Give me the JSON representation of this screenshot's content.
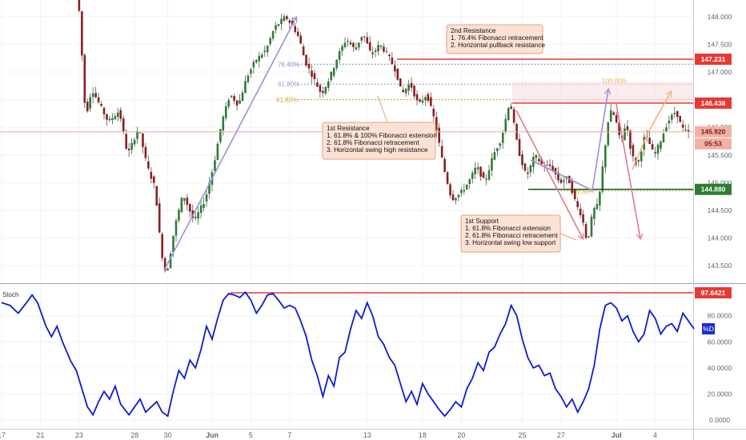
{
  "chart_data": [
    {
      "type": "candlestick",
      "ylim": [
        143.2,
        148.3
      ],
      "y_ticks": [
        "148.000",
        "147.500",
        "147.000",
        "146.500",
        "146.000",
        "145.500",
        "145.000",
        "144.500",
        "144.000",
        "143.500"
      ],
      "x_ticks": [
        "17",
        "21",
        "23",
        "28",
        "30",
        "Jun",
        "5",
        "7",
        "13",
        "18",
        "20",
        "25",
        "27",
        "Jul",
        "4"
      ],
      "x_tick_index": [
        0,
        14,
        28,
        48,
        60,
        76,
        90,
        104,
        132,
        152,
        166,
        188,
        202,
        222,
        236
      ],
      "n_candles": 250,
      "price_path": [
        [
          28,
          148.3
        ],
        [
          29,
          147.9
        ],
        [
          30,
          146.7
        ],
        [
          31,
          146.2
        ],
        [
          33,
          146.7
        ],
        [
          36,
          146.4
        ],
        [
          39,
          146.1
        ],
        [
          43,
          146.3
        ],
        [
          46,
          145.5
        ],
        [
          50,
          146.0
        ],
        [
          53,
          145.3
        ],
        [
          56,
          144.9
        ],
        [
          58,
          143.8
        ],
        [
          60,
          143.3
        ],
        [
          63,
          144.2
        ],
        [
          66,
          144.8
        ],
        [
          70,
          144.3
        ],
        [
          74,
          144.7
        ],
        [
          77,
          145.3
        ],
        [
          80,
          146.1
        ],
        [
          83,
          146.6
        ],
        [
          86,
          146.4
        ],
        [
          89,
          146.9
        ],
        [
          92,
          147.2
        ],
        [
          96,
          147.4
        ],
        [
          99,
          147.8
        ],
        [
          103,
          148.0
        ],
        [
          106,
          147.8
        ],
        [
          108,
          147.6
        ],
        [
          110,
          147.2
        ],
        [
          113,
          146.9
        ],
        [
          116,
          146.6
        ],
        [
          119,
          146.9
        ],
        [
          122,
          147.3
        ],
        [
          125,
          147.6
        ],
        [
          128,
          147.4
        ],
        [
          131,
          147.7
        ],
        [
          134,
          147.3
        ],
        [
          137,
          147.5
        ],
        [
          140,
          147.3
        ],
        [
          143,
          147.0
        ],
        [
          145,
          146.6
        ],
        [
          148,
          146.8
        ],
        [
          151,
          146.4
        ],
        [
          154,
          146.6
        ],
        [
          157,
          146.1
        ],
        [
          160,
          145.3
        ],
        [
          163,
          144.7
        ],
        [
          166,
          144.8
        ],
        [
          169,
          145.0
        ],
        [
          172,
          145.3
        ],
        [
          175,
          145.0
        ],
        [
          178,
          145.5
        ],
        [
          181,
          145.8
        ],
        [
          184,
          146.5
        ],
        [
          187,
          145.6
        ],
        [
          190,
          145.1
        ],
        [
          193,
          145.5
        ],
        [
          196,
          145.3
        ],
        [
          199,
          145.3
        ],
        [
          202,
          145.0
        ],
        [
          205,
          145.1
        ],
        [
          208,
          144.6
        ],
        [
          210,
          144.4
        ],
        [
          212,
          143.9
        ],
        [
          214,
          144.5
        ],
        [
          216,
          144.6
        ],
        [
          218,
          145.5
        ],
        [
          220,
          146.3
        ],
        [
          222,
          146.2
        ],
        [
          224,
          145.7
        ],
        [
          226,
          146.1
        ],
        [
          228,
          145.5
        ],
        [
          230,
          145.3
        ],
        [
          233,
          145.9
        ],
        [
          236,
          145.5
        ],
        [
          238,
          145.7
        ],
        [
          241,
          146.1
        ],
        [
          244,
          146.3
        ],
        [
          246,
          146.0
        ],
        [
          248,
          145.9
        ]
      ],
      "levels": {
        "resistance_2": {
          "price": 147.231,
          "label": "147.231",
          "color": "#e53935"
        },
        "resistance_1": {
          "price": 146.438,
          "label": "146.438",
          "color": "#e53935"
        },
        "current": {
          "price": 145.92,
          "label": "145.920",
          "color": "#c62828"
        },
        "support_1": {
          "price": 144.88,
          "label": "144.880",
          "color": "#1b5e20"
        },
        "countdown": {
          "label": "05:53"
        }
      },
      "fib_labels": {
        "f764": "76.40%",
        "f618_blue": "61.80%",
        "f618_orange": "61.80%",
        "f1000": "100.00%",
        "f618_small": "61.80%"
      },
      "annotations": [
        {
          "id": "res2",
          "lines": [
            "2nd Resistance",
            "1. 76.4% Fibonacci retracement",
            "2. Horizontal pullback resistance"
          ]
        },
        {
          "id": "res1",
          "lines": [
            "1st Resistance",
            "1. 61.8% & 100% Fibonacci extension",
            "2. 61.8% Fibonacci retracement",
            "3. Horizontal swing high resistance"
          ]
        },
        {
          "id": "sup1",
          "lines": [
            "1st Support",
            "1. 61.8% Fibonacci extension",
            "2. 61.8% Fibonacci retracement",
            "3.  Horizontal swing low support"
          ]
        }
      ]
    },
    {
      "type": "line",
      "title": "Stoch",
      "series": [
        {
          "name": "%D",
          "color": "#0d1bd1"
        }
      ],
      "ylim": [
        0,
        100
      ],
      "y_ticks": [
        "80.0000",
        "60.0000",
        "40.0000",
        "20.0000",
        "0.0000"
      ],
      "y_tick_values": [
        80,
        60,
        40,
        20,
        0
      ],
      "level": {
        "value": 97.6421,
        "label": "97.6421",
        "color": "#e53935"
      },
      "points": [
        [
          0,
          90
        ],
        [
          3,
          88
        ],
        [
          6,
          82
        ],
        [
          9,
          90
        ],
        [
          11,
          96
        ],
        [
          13,
          90
        ],
        [
          16,
          72
        ],
        [
          18,
          64
        ],
        [
          20,
          72
        ],
        [
          22,
          60
        ],
        [
          25,
          45
        ],
        [
          27,
          38
        ],
        [
          29,
          24
        ],
        [
          31,
          10
        ],
        [
          33,
          4
        ],
        [
          35,
          14
        ],
        [
          37,
          22
        ],
        [
          39,
          16
        ],
        [
          41,
          26
        ],
        [
          43,
          12
        ],
        [
          46,
          4
        ],
        [
          48,
          10
        ],
        [
          50,
          16
        ],
        [
          52,
          6
        ],
        [
          54,
          10
        ],
        [
          56,
          14
        ],
        [
          58,
          6
        ],
        [
          60,
          3
        ],
        [
          62,
          22
        ],
        [
          64,
          38
        ],
        [
          66,
          32
        ],
        [
          68,
          46
        ],
        [
          70,
          40
        ],
        [
          72,
          54
        ],
        [
          74,
          72
        ],
        [
          76,
          62
        ],
        [
          78,
          78
        ],
        [
          80,
          92
        ],
        [
          82,
          97
        ],
        [
          84,
          96
        ],
        [
          86,
          94
        ],
        [
          88,
          98
        ],
        [
          90,
          92
        ],
        [
          92,
          82
        ],
        [
          94,
          88
        ],
        [
          96,
          96
        ],
        [
          98,
          97
        ],
        [
          100,
          92
        ],
        [
          102,
          86
        ],
        [
          104,
          88
        ],
        [
          106,
          86
        ],
        [
          108,
          76
        ],
        [
          110,
          64
        ],
        [
          112,
          46
        ],
        [
          114,
          34
        ],
        [
          116,
          18
        ],
        [
          118,
          34
        ],
        [
          120,
          26
        ],
        [
          122,
          48
        ],
        [
          124,
          52
        ],
        [
          126,
          70
        ],
        [
          128,
          84
        ],
        [
          130,
          78
        ],
        [
          132,
          90
        ],
        [
          134,
          80
        ],
        [
          136,
          64
        ],
        [
          138,
          58
        ],
        [
          140,
          48
        ],
        [
          142,
          42
        ],
        [
          144,
          28
        ],
        [
          146,
          14
        ],
        [
          148,
          22
        ],
        [
          150,
          12
        ],
        [
          152,
          28
        ],
        [
          154,
          20
        ],
        [
          156,
          14
        ],
        [
          158,
          8
        ],
        [
          160,
          3
        ],
        [
          162,
          8
        ],
        [
          164,
          14
        ],
        [
          166,
          10
        ],
        [
          168,
          24
        ],
        [
          170,
          32
        ],
        [
          172,
          44
        ],
        [
          174,
          38
        ],
        [
          176,
          52
        ],
        [
          178,
          56
        ],
        [
          180,
          66
        ],
        [
          182,
          74
        ],
        [
          184,
          88
        ],
        [
          186,
          80
        ],
        [
          188,
          62
        ],
        [
          190,
          48
        ],
        [
          192,
          40
        ],
        [
          194,
          42
        ],
        [
          196,
          34
        ],
        [
          198,
          36
        ],
        [
          200,
          24
        ],
        [
          202,
          18
        ],
        [
          204,
          10
        ],
        [
          206,
          16
        ],
        [
          208,
          6
        ],
        [
          210,
          14
        ],
        [
          212,
          24
        ],
        [
          214,
          42
        ],
        [
          216,
          70
        ],
        [
          218,
          88
        ],
        [
          220,
          90
        ],
        [
          222,
          86
        ],
        [
          224,
          76
        ],
        [
          226,
          80
        ],
        [
          228,
          68
        ],
        [
          230,
          60
        ],
        [
          232,
          66
        ],
        [
          234,
          84
        ],
        [
          236,
          78
        ],
        [
          238,
          66
        ],
        [
          240,
          72
        ],
        [
          242,
          74
        ],
        [
          244,
          68
        ],
        [
          246,
          82
        ],
        [
          248,
          76
        ],
        [
          250,
          70
        ]
      ]
    }
  ]
}
